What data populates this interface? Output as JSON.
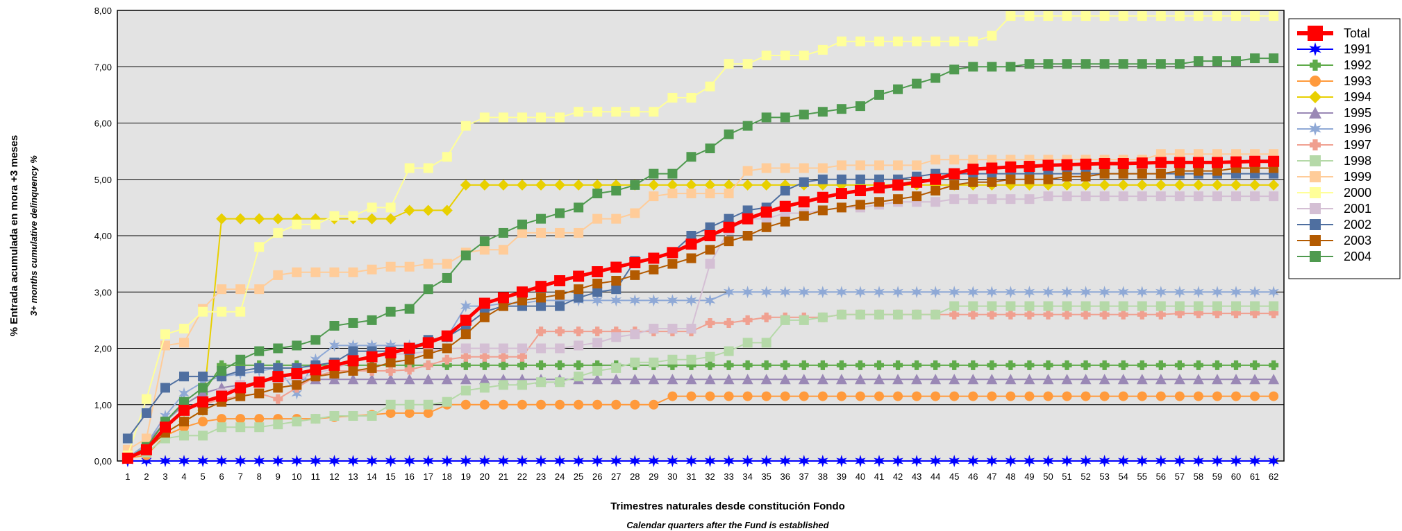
{
  "chart_data": {
    "type": "line",
    "title": "",
    "xlabel": "Trimestres naturales desde constitución Fondo",
    "xlabel_sub": "Calendar quarters after the Fund is established",
    "ylabel": "% Entrada acumulada en mora +3 meses",
    "ylabel_sub": "3+ months cumulative delinquency %",
    "ylim": [
      0,
      8
    ],
    "yticks": [
      "0,00",
      "1,00",
      "2,00",
      "3,00",
      "4,00",
      "5,00",
      "6,00",
      "7,00",
      "8,00"
    ],
    "x_categories": [
      1,
      2,
      3,
      4,
      5,
      6,
      7,
      8,
      9,
      10,
      11,
      12,
      13,
      14,
      15,
      16,
      17,
      18,
      19,
      20,
      21,
      22,
      23,
      24,
      25,
      26,
      27,
      28,
      29,
      30,
      31,
      32,
      33,
      34,
      35,
      36,
      37,
      38,
      39,
      40,
      41,
      42,
      43,
      44,
      45,
      46,
      47,
      48,
      49,
      50,
      51,
      52,
      53,
      54,
      55,
      56,
      57,
      58,
      59,
      60,
      61,
      62
    ],
    "grid": "horizontal",
    "legend_position": "right",
    "series": [
      {
        "name": "Total",
        "color": "#ff0000",
        "marker": "square",
        "width": 5,
        "values": [
          0.05,
          0.2,
          0.6,
          0.9,
          1.05,
          1.15,
          1.3,
          1.4,
          1.5,
          1.55,
          1.62,
          1.7,
          1.78,
          1.85,
          1.92,
          2.0,
          2.1,
          2.22,
          2.5,
          2.8,
          2.9,
          3.0,
          3.1,
          3.2,
          3.28,
          3.36,
          3.44,
          3.52,
          3.6,
          3.7,
          3.85,
          4.0,
          4.15,
          4.3,
          4.42,
          4.52,
          4.6,
          4.68,
          4.75,
          4.8,
          4.85,
          4.9,
          4.95,
          5.0,
          5.1,
          5.18,
          5.2,
          5.22,
          5.23,
          5.25,
          5.26,
          5.27,
          5.28,
          5.28,
          5.29,
          5.3,
          5.3,
          5.3,
          5.3,
          5.31,
          5.32,
          5.32
        ]
      },
      {
        "name": "1991",
        "color": "#0000ff",
        "marker": "star",
        "width": 2,
        "values": [
          0,
          0,
          0,
          0,
          0,
          0,
          0,
          0,
          0,
          0,
          0,
          0,
          0,
          0,
          0,
          0,
          0,
          0,
          0,
          0,
          0,
          0,
          0,
          0,
          0,
          0,
          0,
          0,
          0,
          0,
          0,
          0,
          0,
          0,
          0,
          0,
          0,
          0,
          0,
          0,
          0,
          0,
          0,
          0,
          0,
          0,
          0,
          0,
          0,
          0,
          0,
          0,
          0,
          0,
          0,
          0,
          0,
          0,
          0,
          0,
          0,
          0
        ]
      },
      {
        "name": "1992",
        "color": "#5fab4a",
        "marker": "plus",
        "width": 2,
        "values": [
          0.05,
          0.3,
          0.7,
          1.0,
          1.2,
          1.7,
          1.7,
          1.7,
          1.7,
          1.7,
          1.7,
          1.7,
          1.7,
          1.7,
          1.7,
          1.7,
          1.7,
          1.7,
          1.7,
          1.7,
          1.7,
          1.7,
          1.7,
          1.7,
          1.7,
          1.7,
          1.7,
          1.7,
          1.7,
          1.7,
          1.7,
          1.7,
          1.7,
          1.7,
          1.7,
          1.7,
          1.7,
          1.7,
          1.7,
          1.7,
          1.7,
          1.7,
          1.7,
          1.7,
          1.7,
          1.7,
          1.7,
          1.7,
          1.7,
          1.7,
          1.7,
          1.7,
          1.7,
          1.7,
          1.7,
          1.7,
          1.7,
          1.7,
          1.7,
          1.7,
          1.7,
          1.7
        ]
      },
      {
        "name": "1993",
        "color": "#ff9a3c",
        "marker": "circle",
        "width": 2,
        "values": [
          0.05,
          0.1,
          0.45,
          0.6,
          0.7,
          0.75,
          0.75,
          0.75,
          0.75,
          0.75,
          0.75,
          0.78,
          0.8,
          0.82,
          0.85,
          0.85,
          0.85,
          1.0,
          1.0,
          1.0,
          1.0,
          1.0,
          1.0,
          1.0,
          1.0,
          1.0,
          1.0,
          1.0,
          1.0,
          1.15,
          1.15,
          1.15,
          1.15,
          1.15,
          1.15,
          1.15,
          1.15,
          1.15,
          1.15,
          1.15,
          1.15,
          1.15,
          1.15,
          1.15,
          1.15,
          1.15,
          1.15,
          1.15,
          1.15,
          1.15,
          1.15,
          1.15,
          1.15,
          1.15,
          1.15,
          1.15,
          1.15,
          1.15,
          1.15,
          1.15,
          1.15,
          1.15
        ]
      },
      {
        "name": "1994",
        "color": "#e8d000",
        "marker": "diamond",
        "width": 2,
        "values": [
          0.05,
          0.2,
          0.5,
          0.7,
          0.9,
          4.3,
          4.3,
          4.3,
          4.3,
          4.3,
          4.3,
          4.3,
          4.3,
          4.3,
          4.3,
          4.45,
          4.45,
          4.45,
          4.9,
          4.9,
          4.9,
          4.9,
          4.9,
          4.9,
          4.9,
          4.9,
          4.9,
          4.9,
          4.9,
          4.9,
          4.9,
          4.9,
          4.9,
          4.9,
          4.9,
          4.9,
          4.9,
          4.9,
          4.9,
          4.9,
          4.9,
          4.9,
          4.9,
          4.9,
          4.9,
          4.9,
          4.9,
          4.9,
          4.9,
          4.9,
          4.9,
          4.9,
          4.9,
          4.9,
          4.9,
          4.9,
          4.9,
          4.9,
          4.9,
          4.9,
          4.9,
          4.9
        ]
      },
      {
        "name": "1995",
        "color": "#9a88b5",
        "marker": "triangle",
        "width": 2,
        "values": [
          0.05,
          0.3,
          0.7,
          1.0,
          1.2,
          1.3,
          1.35,
          1.4,
          1.45,
          1.45,
          1.45,
          1.45,
          1.45,
          1.45,
          1.45,
          1.45,
          1.45,
          1.45,
          1.45,
          1.45,
          1.45,
          1.45,
          1.45,
          1.45,
          1.45,
          1.45,
          1.45,
          1.45,
          1.45,
          1.45,
          1.45,
          1.45,
          1.45,
          1.45,
          1.45,
          1.45,
          1.45,
          1.45,
          1.45,
          1.45,
          1.45,
          1.45,
          1.45,
          1.45,
          1.45,
          1.45,
          1.45,
          1.45,
          1.45,
          1.45,
          1.45,
          1.45,
          1.45,
          1.45,
          1.45,
          1.45,
          1.45,
          1.45,
          1.45,
          1.45,
          1.45,
          1.45
        ]
      },
      {
        "name": "1996",
        "color": "#8fa9d6",
        "marker": "star",
        "width": 2,
        "values": [
          0.05,
          0.3,
          0.8,
          1.2,
          1.4,
          1.5,
          1.55,
          1.6,
          1.65,
          1.2,
          1.8,
          2.05,
          2.05,
          2.05,
          2.05,
          2.05,
          2.1,
          2.2,
          2.75,
          2.75,
          2.8,
          2.8,
          2.85,
          2.85,
          2.85,
          2.85,
          2.85,
          2.85,
          2.85,
          2.85,
          2.85,
          2.85,
          3.0,
          3.0,
          3.0,
          3.0,
          3.0,
          3.0,
          3.0,
          3.0,
          3.0,
          3.0,
          3.0,
          3.0,
          3.0,
          3.0,
          3.0,
          3.0,
          3.0,
          3.0,
          3.0,
          3.0,
          3.0,
          3.0,
          3.0,
          3.0,
          3.0,
          3.0,
          3.0,
          3.0,
          3.0,
          3.0
        ]
      },
      {
        "name": "1997",
        "color": "#f0a090",
        "marker": "plus",
        "width": 2,
        "values": [
          0.05,
          0.2,
          0.6,
          0.9,
          1.0,
          1.1,
          1.15,
          1.2,
          1.1,
          1.3,
          1.5,
          1.6,
          1.6,
          1.6,
          1.6,
          1.62,
          1.7,
          1.8,
          1.85,
          1.85,
          1.85,
          1.85,
          2.3,
          2.3,
          2.3,
          2.3,
          2.3,
          2.3,
          2.3,
          2.3,
          2.3,
          2.45,
          2.45,
          2.5,
          2.55,
          2.55,
          2.55,
          2.55,
          2.6,
          2.6,
          2.6,
          2.6,
          2.6,
          2.6,
          2.6,
          2.6,
          2.6,
          2.6,
          2.6,
          2.6,
          2.6,
          2.6,
          2.6,
          2.6,
          2.6,
          2.6,
          2.62,
          2.62,
          2.62,
          2.62,
          2.62,
          2.62
        ]
      },
      {
        "name": "1998",
        "color": "#b5d9a8",
        "marker": "square",
        "width": 2,
        "values": [
          0.05,
          0.15,
          0.4,
          0.45,
          0.45,
          0.6,
          0.6,
          0.6,
          0.65,
          0.7,
          0.75,
          0.8,
          0.8,
          0.8,
          1.0,
          1.0,
          1.0,
          1.05,
          1.25,
          1.3,
          1.35,
          1.35,
          1.4,
          1.4,
          1.5,
          1.6,
          1.65,
          1.75,
          1.75,
          1.8,
          1.8,
          1.85,
          1.95,
          2.1,
          2.1,
          2.5,
          2.5,
          2.55,
          2.6,
          2.6,
          2.6,
          2.6,
          2.6,
          2.6,
          2.75,
          2.75,
          2.75,
          2.75,
          2.75,
          2.75,
          2.75,
          2.75,
          2.75,
          2.75,
          2.75,
          2.75,
          2.75,
          2.75,
          2.75,
          2.75,
          2.75,
          2.75
        ]
      },
      {
        "name": "1999",
        "color": "#ffcc99",
        "marker": "square",
        "width": 2,
        "values": [
          0.2,
          0.4,
          2.05,
          2.1,
          2.7,
          3.05,
          3.05,
          3.05,
          3.3,
          3.35,
          3.35,
          3.35,
          3.35,
          3.4,
          3.45,
          3.45,
          3.5,
          3.5,
          3.7,
          3.75,
          3.75,
          4.05,
          4.05,
          4.05,
          4.05,
          4.3,
          4.3,
          4.4,
          4.7,
          4.75,
          4.75,
          4.75,
          4.75,
          5.15,
          5.2,
          5.2,
          5.2,
          5.2,
          5.25,
          5.25,
          5.25,
          5.25,
          5.25,
          5.35,
          5.35,
          5.35,
          5.35,
          5.35,
          5.35,
          5.35,
          5.35,
          5.35,
          5.35,
          5.35,
          5.35,
          5.45,
          5.45,
          5.45,
          5.45,
          5.45,
          5.45,
          5.45
        ]
      },
      {
        "name": "2000",
        "color": "#ffff99",
        "marker": "square",
        "width": 2,
        "values": [
          0.1,
          1.1,
          2.25,
          2.35,
          2.65,
          2.65,
          2.65,
          3.8,
          4.05,
          4.2,
          4.2,
          4.35,
          4.35,
          4.5,
          4.5,
          5.2,
          5.2,
          5.4,
          5.95,
          6.1,
          6.1,
          6.1,
          6.1,
          6.1,
          6.2,
          6.2,
          6.2,
          6.2,
          6.2,
          6.45,
          6.45,
          6.65,
          7.05,
          7.05,
          7.2,
          7.2,
          7.2,
          7.3,
          7.45,
          7.45,
          7.45,
          7.45,
          7.45,
          7.45,
          7.45,
          7.45,
          7.55,
          7.9,
          7.9,
          7.9,
          7.9,
          7.9,
          7.9,
          7.9,
          7.9,
          7.9,
          7.9,
          7.9,
          7.9,
          7.9,
          7.9,
          7.9
        ]
      },
      {
        "name": "2001",
        "color": "#d4bfd4",
        "marker": "square",
        "width": 2,
        "values": [
          0.05,
          0.2,
          0.6,
          0.9,
          1.0,
          1.2,
          1.35,
          1.4,
          1.45,
          1.45,
          1.55,
          1.65,
          1.75,
          1.85,
          1.9,
          1.9,
          1.95,
          2.0,
          2.0,
          2.0,
          2.0,
          2.0,
          2.0,
          2.0,
          2.05,
          2.1,
          2.2,
          2.25,
          2.35,
          2.35,
          2.35,
          3.5,
          4.1,
          4.3,
          4.3,
          4.4,
          4.4,
          4.45,
          4.5,
          4.5,
          4.55,
          4.6,
          4.6,
          4.6,
          4.65,
          4.65,
          4.65,
          4.65,
          4.65,
          4.7,
          4.7,
          4.7,
          4.7,
          4.7,
          4.7,
          4.7,
          4.7,
          4.7,
          4.7,
          4.7,
          4.7,
          4.7
        ]
      },
      {
        "name": "2002",
        "color": "#4f6fa0",
        "marker": "square",
        "width": 2,
        "values": [
          0.4,
          0.85,
          1.3,
          1.5,
          1.5,
          1.5,
          1.6,
          1.65,
          1.65,
          1.65,
          1.7,
          1.75,
          1.95,
          1.95,
          1.95,
          1.95,
          2.15,
          2.2,
          2.4,
          2.65,
          2.75,
          2.75,
          2.75,
          2.75,
          2.9,
          3.0,
          3.05,
          3.55,
          3.6,
          3.7,
          4.0,
          4.15,
          4.3,
          4.45,
          4.5,
          4.8,
          4.95,
          5.0,
          5.0,
          5.0,
          5.0,
          5.0,
          5.05,
          5.1,
          5.1,
          5.1,
          5.1,
          5.1,
          5.1,
          5.1,
          5.1,
          5.1,
          5.1,
          5.1,
          5.1,
          5.1,
          5.1,
          5.1,
          5.1,
          5.1,
          5.1,
          5.1
        ]
      },
      {
        "name": "2003",
        "color": "#b35a00",
        "marker": "square",
        "width": 2,
        "values": [
          0.05,
          0.2,
          0.5,
          0.7,
          0.9,
          1.05,
          1.15,
          1.2,
          1.3,
          1.35,
          1.5,
          1.55,
          1.6,
          1.65,
          1.75,
          1.8,
          1.9,
          2.0,
          2.25,
          2.55,
          2.75,
          2.85,
          2.9,
          2.95,
          3.05,
          3.15,
          3.2,
          3.3,
          3.4,
          3.5,
          3.6,
          3.75,
          3.9,
          4.0,
          4.15,
          4.25,
          4.35,
          4.45,
          4.5,
          4.55,
          4.6,
          4.65,
          4.7,
          4.8,
          4.9,
          4.95,
          4.95,
          5.0,
          5.0,
          5.0,
          5.05,
          5.05,
          5.1,
          5.1,
          5.1,
          5.1,
          5.15,
          5.15,
          5.15,
          5.2,
          5.2,
          5.2
        ]
      },
      {
        "name": "2004",
        "color": "#4f9a4f",
        "marker": "square",
        "width": 2,
        "values": [
          0.05,
          0.25,
          0.7,
          1.05,
          1.3,
          1.6,
          1.8,
          1.95,
          2.0,
          2.05,
          2.15,
          2.4,
          2.45,
          2.5,
          2.65,
          2.7,
          3.05,
          3.25,
          3.65,
          3.9,
          4.05,
          4.2,
          4.3,
          4.4,
          4.5,
          4.75,
          4.8,
          4.9,
          5.1,
          5.1,
          5.4,
          5.55,
          5.8,
          5.95,
          6.1,
          6.1,
          6.15,
          6.2,
          6.25,
          6.3,
          6.5,
          6.6,
          6.7,
          6.8,
          6.95,
          7.0,
          7.0,
          7.0,
          7.05,
          7.05,
          7.05,
          7.05,
          7.05,
          7.05,
          7.05,
          7.05,
          7.05,
          7.1,
          7.1,
          7.1,
          7.15,
          7.15
        ]
      }
    ]
  }
}
